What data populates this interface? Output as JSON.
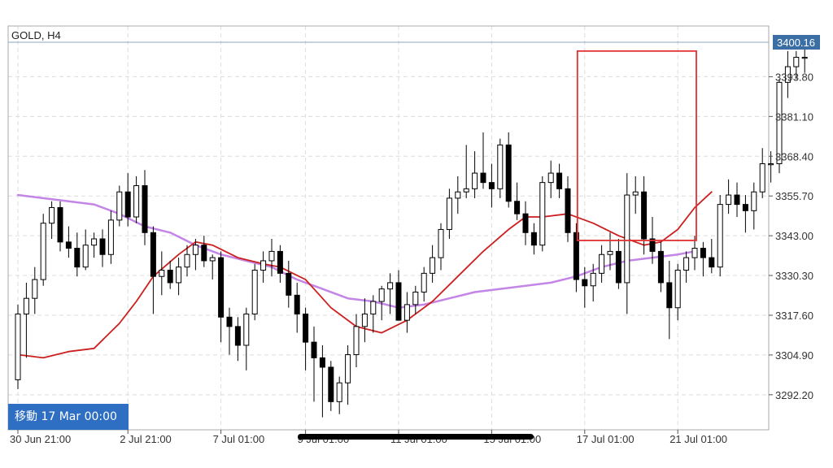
{
  "header": {
    "symbol_title": "GOLD, H4"
  },
  "overlay": {
    "goto_label": "移動 17 Mar 00:00"
  },
  "price_label": {
    "value": "3400.16",
    "color": "#3a6ea5"
  },
  "highlight_box": {
    "color": "#e03030",
    "x_from": 67,
    "x_to": 80,
    "y_from": 3341.5,
    "y_to": 3402.0
  },
  "colors": {
    "bull_fill": "#ffffff",
    "bear_fill": "#000000",
    "candle_outline": "#000000",
    "ma_fast": "#cc1f1f",
    "ma_slow": "#c385e6",
    "grid": "#dcdcdc"
  },
  "chart_data": {
    "type": "candlestick",
    "title": "GOLD, H4",
    "ylim": [
      3281,
      3410
    ],
    "y_ticks": [
      "3393.80",
      "3381.10",
      "3368.40",
      "3355.70",
      "3343.00",
      "3330.30",
      "3317.60",
      "3304.90",
      "3292.20"
    ],
    "x_ticks": [
      {
        "label": "30 Jun 21:00",
        "index": 0
      },
      {
        "label": "2 Jul 21:00",
        "index": 13
      },
      {
        "label": "7 Jul 01:00",
        "index": 24
      },
      {
        "label": "9 Jul 01:00",
        "index": 34
      },
      {
        "label": "11 Jul 01:00",
        "index": 45
      },
      {
        "label": "15 Jul 01:00",
        "index": 56
      },
      {
        "label": "17 Jul 01:00",
        "index": 67
      },
      {
        "label": "21 Jul 01:00",
        "index": 78
      }
    ],
    "candles": [
      [
        3297,
        3321,
        3294,
        3318
      ],
      [
        3318,
        3328,
        3304,
        3323
      ],
      [
        3323,
        3333,
        3318,
        3329
      ],
      [
        3329,
        3350,
        3327,
        3347
      ],
      [
        3347,
        3354,
        3342,
        3352
      ],
      [
        3352,
        3354,
        3338,
        3341
      ],
      [
        3341,
        3346,
        3336,
        3339
      ],
      [
        3339,
        3344,
        3330,
        3333
      ],
      [
        3333,
        3345,
        3332,
        3340
      ],
      [
        3340,
        3344,
        3336,
        3342
      ],
      [
        3342,
        3345,
        3333,
        3337
      ],
      [
        3337,
        3351,
        3334,
        3348
      ],
      [
        3348,
        3359,
        3346,
        3357
      ],
      [
        3357,
        3363,
        3346,
        3349
      ],
      [
        3349,
        3362,
        3347,
        3359
      ],
      [
        3359,
        3364,
        3340,
        3344
      ],
      [
        3344,
        3346,
        3318,
        3330
      ],
      [
        3330,
        3338,
        3324,
        3332
      ],
      [
        3332,
        3335,
        3326,
        3328
      ],
      [
        3328,
        3336,
        3324,
        3333
      ],
      [
        3333,
        3340,
        3330,
        3337
      ],
      [
        3337,
        3342,
        3332,
        3340
      ],
      [
        3340,
        3343,
        3333,
        3335
      ],
      [
        3335,
        3337,
        3329,
        3336
      ],
      [
        3336,
        3338,
        3309,
        3317
      ],
      [
        3317,
        3320,
        3305,
        3314
      ],
      [
        3314,
        3317,
        3303,
        3308
      ],
      [
        3308,
        3320,
        3300,
        3318
      ],
      [
        3318,
        3334,
        3316,
        3332
      ],
      [
        3332,
        3338,
        3328,
        3335
      ],
      [
        3335,
        3342,
        3330,
        3338
      ],
      [
        3338,
        3340,
        3328,
        3331
      ],
      [
        3331,
        3335,
        3320,
        3324
      ],
      [
        3324,
        3328,
        3312,
        3318
      ],
      [
        3318,
        3320,
        3300,
        3309
      ],
      [
        3309,
        3314,
        3290,
        3304
      ],
      [
        3304,
        3308,
        3285,
        3301
      ],
      [
        3301,
        3303,
        3287,
        3290
      ],
      [
        3290,
        3298,
        3286,
        3296
      ],
      [
        3296,
        3308,
        3289,
        3305
      ],
      [
        3305,
        3318,
        3301,
        3314
      ],
      [
        3314,
        3323,
        3309,
        3318
      ],
      [
        3318,
        3324,
        3312,
        3322
      ],
      [
        3322,
        3327,
        3316,
        3326
      ],
      [
        3326,
        3331,
        3318,
        3328
      ],
      [
        3328,
        3332,
        3316,
        3316
      ],
      [
        3316,
        3325,
        3312,
        3321
      ],
      [
        3321,
        3327,
        3318,
        3325
      ],
      [
        3325,
        3333,
        3322,
        3331
      ],
      [
        3331,
        3340,
        3328,
        3336
      ],
      [
        3336,
        3347,
        3332,
        3345
      ],
      [
        3345,
        3358,
        3342,
        3355
      ],
      [
        3355,
        3362,
        3350,
        3357
      ],
      [
        3357,
        3372,
        3355,
        3358
      ],
      [
        3358,
        3370,
        3355,
        3363
      ],
      [
        3363,
        3376,
        3358,
        3360
      ],
      [
        3360,
        3366,
        3352,
        3358
      ],
      [
        3358,
        3374,
        3355,
        3372
      ],
      [
        3372,
        3376,
        3352,
        3354
      ],
      [
        3354,
        3360,
        3348,
        3350
      ],
      [
        3350,
        3354,
        3340,
        3344
      ],
      [
        3344,
        3347,
        3337,
        3340
      ],
      [
        3340,
        3362,
        3338,
        3360
      ],
      [
        3360,
        3367,
        3355,
        3363
      ],
      [
        3363,
        3366,
        3355,
        3358
      ],
      [
        3358,
        3362,
        3341,
        3344
      ],
      [
        3344,
        3347,
        3325,
        3329
      ],
      [
        3329,
        3333,
        3320,
        3327
      ],
      [
        3327,
        3334,
        3322,
        3331
      ],
      [
        3331,
        3340,
        3328,
        3337
      ],
      [
        3337,
        3344,
        3332,
        3338
      ],
      [
        3338,
        3342,
        3326,
        3328
      ],
      [
        3328,
        3363,
        3318,
        3356
      ],
      [
        3356,
        3362,
        3350,
        3357
      ],
      [
        3357,
        3362,
        3337,
        3342
      ],
      [
        3342,
        3349,
        3334,
        3338
      ],
      [
        3338,
        3341,
        3325,
        3328
      ],
      [
        3328,
        3335,
        3310,
        3320
      ],
      [
        3320,
        3334,
        3316,
        3332
      ],
      [
        3332,
        3338,
        3328,
        3336
      ],
      [
        3336,
        3343,
        3332,
        3339
      ],
      [
        3339,
        3341,
        3330,
        3336
      ],
      [
        3336,
        3342,
        3331,
        3333
      ],
      [
        3333,
        3356,
        3330,
        3353
      ],
      [
        3353,
        3361,
        3350,
        3356
      ],
      [
        3356,
        3360,
        3349,
        3353
      ],
      [
        3353,
        3356,
        3344,
        3351
      ],
      [
        3351,
        3360,
        3345,
        3357
      ],
      [
        3357,
        3371,
        3355,
        3366
      ],
      [
        3366,
        3370,
        3360,
        3366
      ],
      [
        3366,
        3393,
        3363,
        3392
      ],
      [
        3392,
        3402,
        3387,
        3397
      ],
      [
        3397,
        3402,
        3393,
        3400
      ],
      [
        3400,
        3403,
        3395,
        3400
      ]
    ],
    "ma_fast": [
      [
        0,
        3305
      ],
      [
        3,
        3304
      ],
      [
        6,
        3306
      ],
      [
        9,
        3307
      ],
      [
        12,
        3315
      ],
      [
        14,
        3322
      ],
      [
        16,
        3330
      ],
      [
        19,
        3337
      ],
      [
        21,
        3341
      ],
      [
        23,
        3340
      ],
      [
        26,
        3336
      ],
      [
        29,
        3334
      ],
      [
        31,
        3333
      ],
      [
        34,
        3329
      ],
      [
        37,
        3320
      ],
      [
        40,
        3314
      ],
      [
        43,
        3312
      ],
      [
        46,
        3316
      ],
      [
        49,
        3322
      ],
      [
        52,
        3330
      ],
      [
        55,
        3338
      ],
      [
        58,
        3345
      ],
      [
        60,
        3349
      ],
      [
        62,
        3349
      ],
      [
        65,
        3350
      ],
      [
        68,
        3347
      ],
      [
        71,
        3343
      ],
      [
        74,
        3340
      ],
      [
        76,
        3341
      ],
      [
        78,
        3345
      ],
      [
        80,
        3352
      ],
      [
        82,
        3357
      ]
    ],
    "ma_slow": [
      [
        0,
        3356
      ],
      [
        3,
        3355
      ],
      [
        6,
        3354
      ],
      [
        9,
        3353
      ],
      [
        12,
        3350
      ],
      [
        15,
        3346
      ],
      [
        18,
        3344
      ],
      [
        21,
        3340
      ],
      [
        24,
        3337
      ],
      [
        27,
        3335
      ],
      [
        30,
        3333
      ],
      [
        33,
        3329
      ],
      [
        36,
        3326
      ],
      [
        39,
        3323
      ],
      [
        42,
        3322
      ],
      [
        45,
        3320
      ],
      [
        48,
        3321
      ],
      [
        51,
        3323
      ],
      [
        54,
        3325
      ],
      [
        57,
        3326
      ],
      [
        60,
        3327
      ],
      [
        63,
        3328
      ],
      [
        66,
        3330
      ],
      [
        69,
        3333
      ],
      [
        72,
        3335
      ],
      [
        75,
        3336
      ],
      [
        78,
        3337
      ],
      [
        80,
        3338
      ]
    ]
  }
}
